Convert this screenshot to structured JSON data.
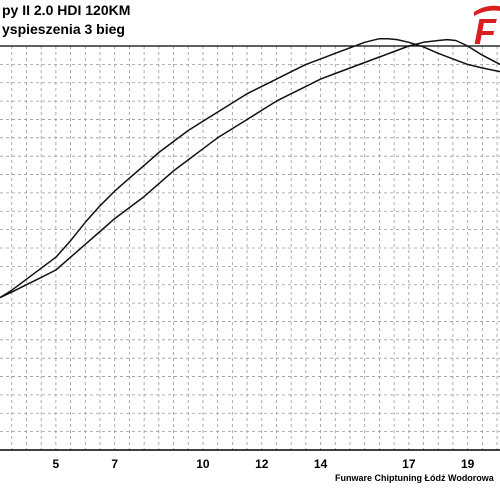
{
  "titles": {
    "line1": "py II 2.0 HDI 120KM",
    "line2": "yspieszenia 3 bieg"
  },
  "logo": {
    "text": "F",
    "color": "#d81e1e"
  },
  "footer": "Funware Chiptuning Łódź Wodorowa",
  "chart_data": {
    "type": "line",
    "title": "",
    "xlabel": "",
    "ylabel": "",
    "xlim": [
      3.1,
      20.1
    ],
    "ylim": [
      0,
      22
    ],
    "grid": true,
    "x_ticks": [
      5,
      7,
      10,
      12,
      14,
      17,
      19
    ],
    "x_tick_labels": [
      "5",
      "7",
      "10",
      "12",
      "14",
      "17",
      "19"
    ],
    "series": [
      {
        "name": "",
        "x": [
          3.1,
          3.5,
          4.0,
          4.5,
          5.0,
          5.5,
          6.0,
          6.5,
          7.0,
          7.5,
          8.0,
          8.5,
          9.0,
          9.5,
          10.0,
          10.5,
          11.0,
          11.5,
          12.0,
          12.5,
          13.0,
          13.5,
          14.0,
          14.5,
          15.0,
          15.5,
          16.0,
          16.3,
          16.6,
          17.0,
          17.5,
          18.0,
          18.5,
          19.0,
          19.5,
          20.1
        ],
        "y": [
          8.3,
          8.7,
          9.3,
          9.9,
          10.5,
          11.4,
          12.4,
          13.3,
          14.1,
          14.8,
          15.5,
          16.2,
          16.8,
          17.4,
          17.9,
          18.4,
          18.9,
          19.4,
          19.8,
          20.2,
          20.6,
          21.0,
          21.3,
          21.6,
          21.9,
          22.2,
          22.4,
          22.4,
          22.35,
          22.2,
          21.95,
          21.6,
          21.3,
          21.0,
          20.8,
          20.6
        ]
      },
      {
        "name": "",
        "x": [
          3.1,
          3.5,
          4.0,
          4.5,
          5.0,
          5.5,
          6.0,
          6.5,
          7.0,
          7.5,
          8.0,
          8.5,
          9.0,
          9.5,
          10.0,
          10.5,
          11.0,
          11.5,
          12.0,
          12.5,
          13.0,
          13.5,
          14.0,
          14.5,
          15.0,
          15.5,
          16.0,
          16.5,
          17.0,
          17.5,
          18.0,
          18.3,
          18.6,
          19.0,
          19.5,
          20.1
        ],
        "y": [
          8.3,
          8.6,
          9.0,
          9.4,
          9.8,
          10.5,
          11.2,
          11.9,
          12.6,
          13.2,
          13.8,
          14.5,
          15.2,
          15.8,
          16.4,
          17.0,
          17.5,
          18.0,
          18.5,
          19.0,
          19.4,
          19.8,
          20.2,
          20.5,
          20.8,
          21.1,
          21.4,
          21.7,
          22.0,
          22.2,
          22.3,
          22.35,
          22.3,
          22.0,
          21.5,
          21.0
        ]
      }
    ]
  }
}
